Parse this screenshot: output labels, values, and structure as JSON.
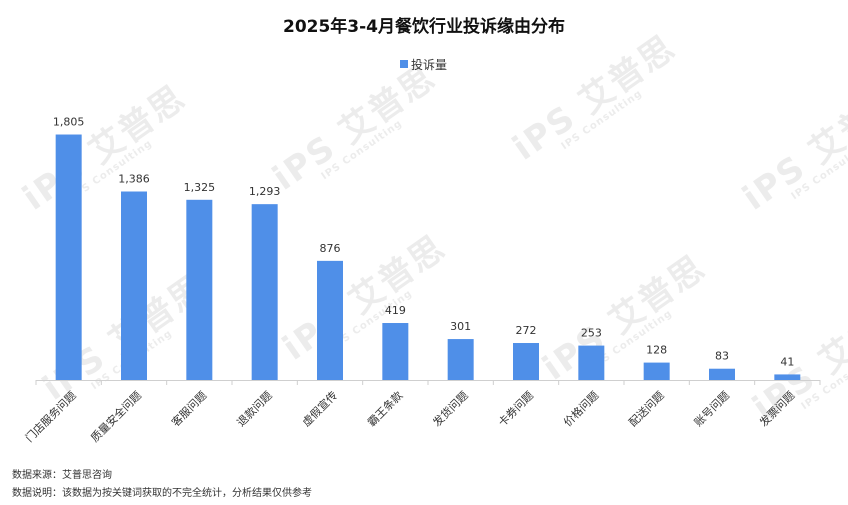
{
  "chart_data": {
    "type": "bar",
    "title": "2025年3-4月餐饮行业投诉缘由分布",
    "legend": {
      "label": "投诉量",
      "position": "top-center"
    },
    "categories": [
      "门店服务问题",
      "质量安全问题",
      "客服问题",
      "退款问题",
      "虚假宣传",
      "霸王条款",
      "发货问题",
      "卡券问题",
      "价格问题",
      "配送问题",
      "账号问题",
      "发票问题"
    ],
    "values": [
      1805,
      1386,
      1325,
      1293,
      876,
      419,
      301,
      272,
      253,
      128,
      83,
      41
    ],
    "value_labels": [
      "1,805",
      "1,386",
      "1,325",
      "1,293",
      "876",
      "419",
      "301",
      "272",
      "253",
      "128",
      "83",
      "41"
    ],
    "ylim": [
      0,
      2000
    ],
    "grid": false,
    "bar_color": "#4f8fe8"
  },
  "footer": {
    "source": "数据来源：艾普思咨询",
    "note": "数据说明：该数据为按关键词获取的不完全统计，分析结果仅供参考"
  },
  "watermark": {
    "brand": "iPS 艾普思",
    "sub": "IPS Consulting"
  }
}
